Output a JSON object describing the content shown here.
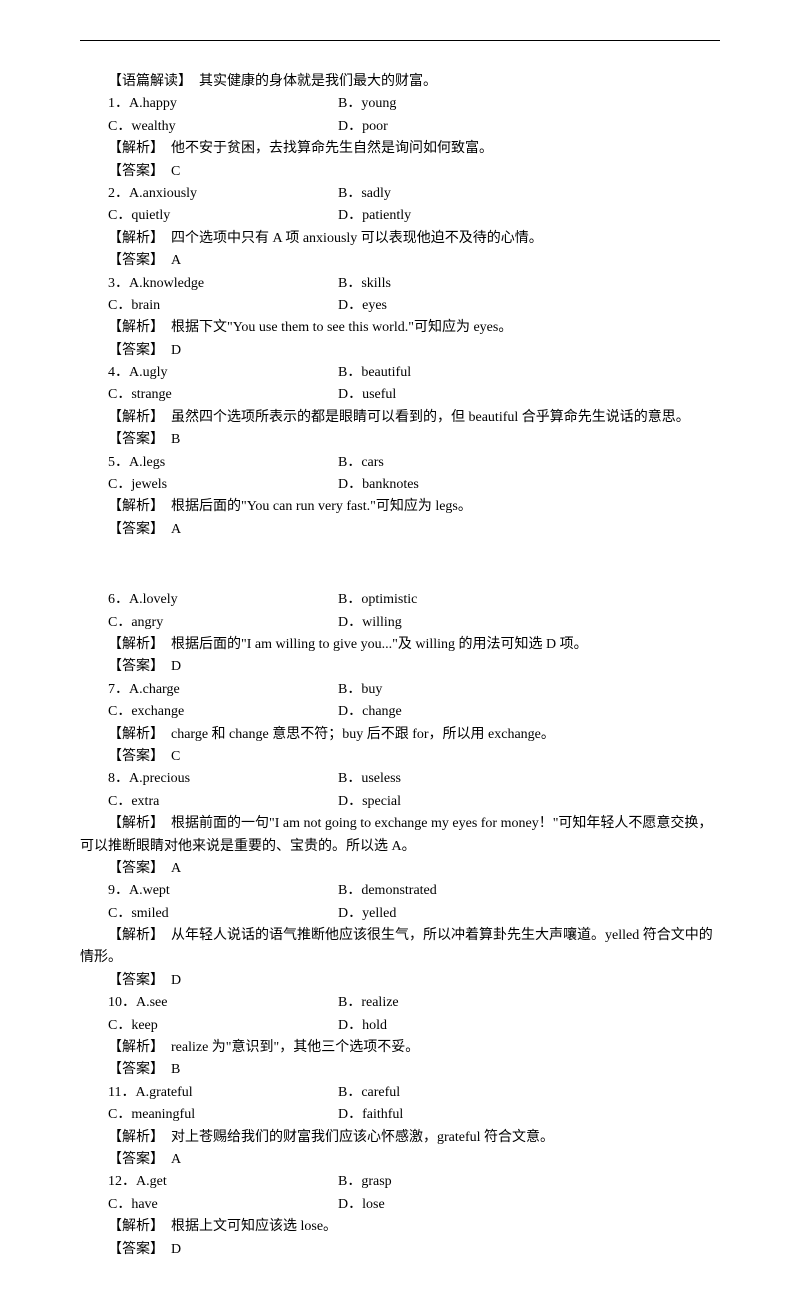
{
  "intro": {
    "label": "【语篇解读】",
    "text": "其实健康的身体就是我们最大的财富。"
  },
  "questions": [
    {
      "num": "1．",
      "a": "A.happy",
      "b": "B．young",
      "c": "C．wealthy",
      "d": "D．poor",
      "analysis_label": "【解析】",
      "analysis": "他不安于贫困，去找算命先生自然是询问如何致富。",
      "answer_label": "【答案】",
      "answer": "C"
    },
    {
      "num": "2．",
      "a": "A.anxiously",
      "b": "B．sadly",
      "c": "C．quietly",
      "d": "D．patiently",
      "analysis_label": "【解析】",
      "analysis": "四个选项中只有 A 项 anxiously 可以表现他迫不及待的心情。",
      "answer_label": "【答案】",
      "answer": "A"
    },
    {
      "num": "3．",
      "a": "A.knowledge",
      "b": "B．skills",
      "c": "C．brain",
      "d": "D．eyes",
      "analysis_label": "【解析】",
      "analysis": "根据下文\"You use them to see this world.\"可知应为 eyes。",
      "answer_label": "【答案】",
      "answer": "D"
    },
    {
      "num": "4．",
      "a": "A.ugly",
      "b": "B．beautiful",
      "c": "C．strange",
      "d": "D．useful",
      "analysis_label": "【解析】",
      "analysis": "虽然四个选项所表示的都是眼睛可以看到的，但 beautiful 合乎算命先生说话的意思。",
      "answer_label": "【答案】",
      "answer": "B"
    },
    {
      "num": "5．",
      "a": "A.legs",
      "b": "B．cars",
      "c": "C．jewels",
      "d": "D．banknotes",
      "analysis_label": "【解析】",
      "analysis": "根据后面的\"You can run very fast.\"可知应为 legs。",
      "answer_label": "【答案】",
      "answer": "A"
    },
    {
      "num": "6．",
      "a": "A.lovely",
      "b": "B．optimistic",
      "c": "C．angry",
      "d": "D．willing",
      "analysis_label": "【解析】",
      "analysis": "根据后面的\"I am willing to give you...\"及 willing 的用法可知选 D 项。",
      "answer_label": "【答案】",
      "answer": "D"
    },
    {
      "num": "7．",
      "a": "A.charge",
      "b": "B．buy",
      "c": "C．exchange",
      "d": "D．change",
      "analysis_label": "【解析】",
      "analysis": "charge 和 change 意思不符；buy 后不跟 for，所以用 exchange。",
      "answer_label": "【答案】",
      "answer": "C"
    },
    {
      "num": "8．",
      "a": "A.precious",
      "b": "B．useless",
      "c": "C．extra",
      "d": "D．special",
      "analysis_label": "【解析】",
      "analysis": "根据前面的一句\"I am not going to exchange my eyes for money！\"可知年轻人不愿意交换，",
      "analysis_cont": "可以推断眼睛对他来说是重要的、宝贵的。所以选 A。",
      "answer_label": "【答案】",
      "answer": "A"
    },
    {
      "num": "9．",
      "a": "A.wept",
      "b": "B．demonstrated",
      "c": "C．smiled",
      "d": "D．yelled",
      "analysis_label": "【解析】",
      "analysis": "从年轻人说话的语气推断他应该很生气，所以冲着算卦先生大声嚷道。yelled 符合文中的",
      "analysis_cont": "情形。",
      "answer_label": "【答案】",
      "answer": "D"
    },
    {
      "num": "10．",
      "a": "A.see",
      "b": "B．realize",
      "c": "C．keep",
      "d": "D．hold",
      "analysis_label": "【解析】",
      "analysis": "realize 为\"意识到\"，其他三个选项不妥。",
      "answer_label": "【答案】",
      "answer": "B"
    },
    {
      "num": "11．",
      "a": "A.grateful",
      "b": "B．careful",
      "c": "C．meaningful",
      "d": "D．faithful",
      "analysis_label": "【解析】",
      "analysis": "对上苍赐给我们的财富我们应该心怀感激，grateful 符合文意。",
      "answer_label": "【答案】",
      "answer": "A"
    },
    {
      "num": "12．",
      "a": "A.get",
      "b": "B．grasp",
      "c": "C．have",
      "d": "D．lose",
      "analysis_label": "【解析】",
      "analysis": "根据上文可知应该选 lose。",
      "answer_label": "【答案】",
      "answer": "D"
    }
  ]
}
